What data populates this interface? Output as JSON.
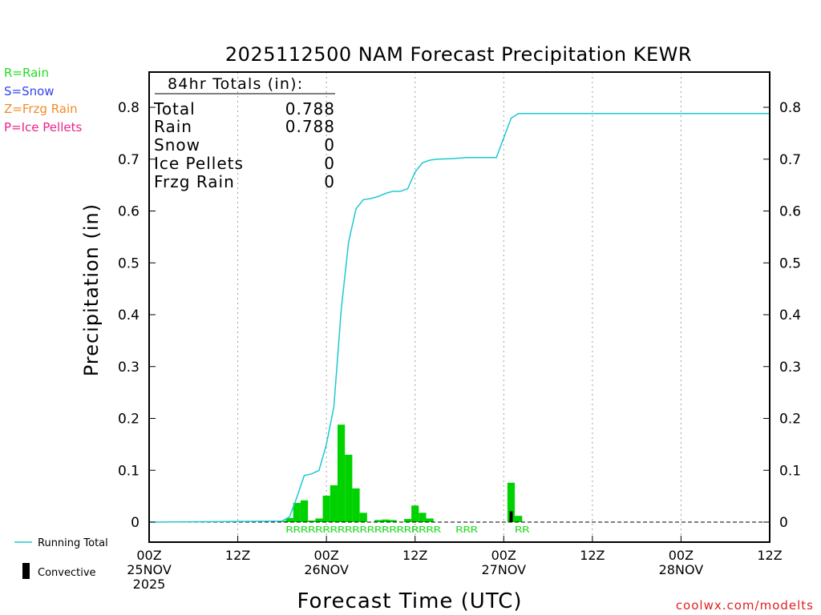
{
  "chart_data": {
    "type": "bar",
    "title": "2025112500 NAM Forecast Precipitation KEWR",
    "xlabel": "Forecast Time (UTC)",
    "ylabel": "Precipitation (in)",
    "ylim": [
      -0.04,
      0.87
    ],
    "xlim_hours": [
      0,
      84
    ],
    "y_ticks": [
      0,
      0.1,
      0.2,
      0.3,
      0.4,
      0.5,
      0.6,
      0.7,
      0.8
    ],
    "y_tick_labels": [
      "0",
      "0.1",
      "0.2",
      "0.3",
      "0.4",
      "0.5",
      "0.6",
      "0.7",
      "0.8"
    ],
    "x_ticks": [
      {
        "hour": 0,
        "labels": [
          "00Z",
          "25NOV",
          "2025"
        ]
      },
      {
        "hour": 12,
        "labels": [
          "12Z"
        ]
      },
      {
        "hour": 24,
        "labels": [
          "00Z",
          "26NOV"
        ]
      },
      {
        "hour": 36,
        "labels": [
          "12Z"
        ]
      },
      {
        "hour": 48,
        "labels": [
          "00Z",
          "27NOV"
        ]
      },
      {
        "hour": 60,
        "labels": [
          "12Z"
        ]
      },
      {
        "hour": 72,
        "labels": [
          "00Z",
          "28NOV"
        ]
      },
      {
        "hour": 84,
        "labels": [
          "12Z"
        ]
      }
    ],
    "grid_hours": [
      12,
      24,
      36,
      48,
      60,
      72
    ],
    "bar_width_hours": 1,
    "bars": [
      {
        "hour": 18,
        "value": 0.002
      },
      {
        "hour": 19,
        "value": 0.008
      },
      {
        "hour": 20,
        "value": 0.037
      },
      {
        "hour": 21,
        "value": 0.042
      },
      {
        "hour": 22,
        "value": 0.003
      },
      {
        "hour": 23,
        "value": 0.007
      },
      {
        "hour": 24,
        "value": 0.051
      },
      {
        "hour": 25,
        "value": 0.071
      },
      {
        "hour": 26,
        "value": 0.188
      },
      {
        "hour": 27,
        "value": 0.13
      },
      {
        "hour": 28,
        "value": 0.065
      },
      {
        "hour": 29,
        "value": 0.018
      },
      {
        "hour": 31,
        "value": 0.004
      },
      {
        "hour": 32,
        "value": 0.005
      },
      {
        "hour": 33,
        "value": 0.004
      },
      {
        "hour": 35,
        "value": 0.006
      },
      {
        "hour": 36,
        "value": 0.032
      },
      {
        "hour": 37,
        "value": 0.018
      },
      {
        "hour": 38,
        "value": 0.007
      },
      {
        "hour": 49,
        "value": 0.076
      },
      {
        "hour": 50,
        "value": 0.012
      }
    ],
    "convective": [
      {
        "hour": 49,
        "value": 0.021
      }
    ],
    "running_total": {
      "name": "Running Total",
      "x": [
        0,
        18,
        19,
        20,
        21,
        22,
        23,
        24,
        25,
        26,
        27,
        28,
        29,
        30,
        31,
        32,
        33,
        34,
        35,
        36,
        37,
        38,
        39,
        41,
        43,
        45,
        47,
        49,
        50,
        51,
        84
      ],
      "y": [
        0,
        0.002,
        0.01,
        0.048,
        0.09,
        0.093,
        0.1,
        0.15,
        0.222,
        0.41,
        0.54,
        0.604,
        0.622,
        0.624,
        0.628,
        0.634,
        0.638,
        0.638,
        0.643,
        0.675,
        0.693,
        0.698,
        0.7,
        0.701,
        0.703,
        0.703,
        0.703,
        0.779,
        0.788,
        0.788,
        0.788
      ]
    },
    "ptype_labels": [
      {
        "start_hour": 19,
        "text": "RRRRRRRRRRRRRRRRRR"
      },
      {
        "start_hour": 36,
        "text": "RRRR"
      },
      {
        "start_hour": 42,
        "text": "RRR"
      },
      {
        "start_hour": 50,
        "text": "RR"
      }
    ],
    "totals_box": {
      "heading": "84hr Totals (in):",
      "rows": [
        {
          "label": "Total",
          "value": "0.788"
        },
        {
          "label": "Rain",
          "value": "0.788"
        },
        {
          "label": "Snow",
          "value": "0"
        },
        {
          "label": "Ice Pellets",
          "value": "0"
        },
        {
          "label": "Frzg Rain",
          "value": "0"
        }
      ]
    },
    "legend_ptype": [
      {
        "text": "R=Rain",
        "color": "#22dd22"
      },
      {
        "text": "S=Snow",
        "color": "#3344ee"
      },
      {
        "text": "Z=Frzg Rain",
        "color": "#f08c28"
      },
      {
        "text": "P=Ice Pellets",
        "color": "#ee2288"
      }
    ],
    "legend_series": [
      {
        "text": "Running Total",
        "color": "#1ec8d2"
      },
      {
        "text": "Convective",
        "color": "#000000"
      }
    ],
    "credit": "coolwx.com/modelts"
  },
  "colors": {
    "bar": "#00d200",
    "line": "#1ec8d2",
    "convective": "#000000",
    "ptype_text": "#22dd22",
    "credit": "#e02020",
    "grid": "#a0a0a0"
  }
}
